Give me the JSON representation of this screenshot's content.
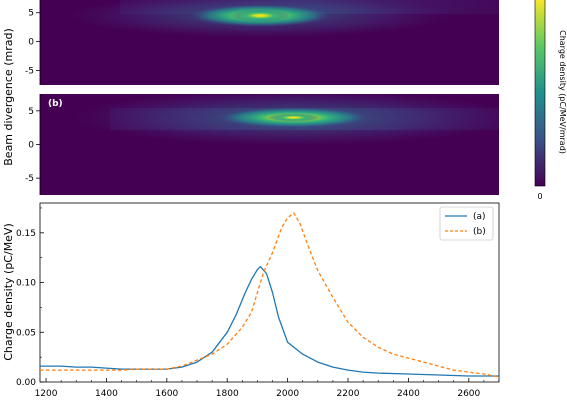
{
  "colors": {
    "series_a": "#1f77b4",
    "series_b": "#ff7f0e",
    "heatmap_bg": "#440154",
    "heatmap_high": "#fde725"
  },
  "colorbar": {
    "label": "Charge density (pC/MeV/mrad)",
    "min_label": "0",
    "colormap": "viridis"
  },
  "chart_data": [
    {
      "type": "heatmap",
      "panel_label": "",
      "ylabel": "Beam divergence (mrad)",
      "y_ticks": [
        "5",
        "0",
        "-5"
      ],
      "ylim": [
        -7,
        7
      ],
      "x_range": [
        1180,
        2700
      ],
      "peak": {
        "x": 1910,
        "y": 4.5
      }
    },
    {
      "type": "heatmap",
      "panel_label": "(b)",
      "ylabel": "Beam divergence (mrad)",
      "y_ticks": [
        "5",
        "0",
        "-5"
      ],
      "ylim": [
        -7,
        7
      ],
      "x_range": [
        1180,
        2700
      ],
      "peak": {
        "x": 2020,
        "y": 4.0
      }
    },
    {
      "type": "line",
      "xlabel": "",
      "ylabel": "Charge density (pC/MeV)",
      "xlim": [
        1180,
        2700
      ],
      "ylim": [
        0,
        0.18
      ],
      "x_ticks": [
        1200,
        1400,
        1600,
        1800,
        2000,
        2200,
        2400,
        2600
      ],
      "y_ticks": [
        0.0,
        0.05,
        0.1,
        0.15
      ],
      "y_tick_labels": [
        "0.00",
        "0.05",
        "0.10",
        "0.15"
      ],
      "legend_position": "top-right",
      "series": [
        {
          "name": "(a)",
          "style": "solid",
          "x": [
            1180,
            1250,
            1300,
            1350,
            1400,
            1450,
            1500,
            1550,
            1600,
            1650,
            1700,
            1750,
            1800,
            1830,
            1860,
            1880,
            1900,
            1910,
            1930,
            1950,
            1970,
            2000,
            2050,
            2100,
            2150,
            2200,
            2250,
            2300,
            2400,
            2500,
            2600,
            2700
          ],
          "values": [
            0.016,
            0.016,
            0.015,
            0.015,
            0.014,
            0.013,
            0.013,
            0.013,
            0.013,
            0.015,
            0.02,
            0.03,
            0.05,
            0.068,
            0.09,
            0.103,
            0.113,
            0.116,
            0.109,
            0.09,
            0.065,
            0.04,
            0.028,
            0.02,
            0.015,
            0.012,
            0.01,
            0.009,
            0.008,
            0.007,
            0.006,
            0.006
          ]
        },
        {
          "name": "(b)",
          "style": "dashed",
          "x": [
            1180,
            1250,
            1300,
            1350,
            1400,
            1450,
            1500,
            1550,
            1600,
            1650,
            1700,
            1750,
            1800,
            1850,
            1880,
            1900,
            1920,
            1950,
            1980,
            2000,
            2020,
            2040,
            2070,
            2100,
            2150,
            2200,
            2250,
            2300,
            2350,
            2400,
            2450,
            2500,
            2550,
            2600,
            2650,
            2700
          ],
          "values": [
            0.012,
            0.012,
            0.012,
            0.012,
            0.012,
            0.012,
            0.013,
            0.013,
            0.013,
            0.016,
            0.022,
            0.028,
            0.038,
            0.055,
            0.07,
            0.09,
            0.11,
            0.13,
            0.155,
            0.165,
            0.17,
            0.16,
            0.135,
            0.112,
            0.085,
            0.06,
            0.045,
            0.035,
            0.028,
            0.024,
            0.02,
            0.016,
            0.012,
            0.01,
            0.008,
            0.005
          ]
        }
      ]
    }
  ]
}
